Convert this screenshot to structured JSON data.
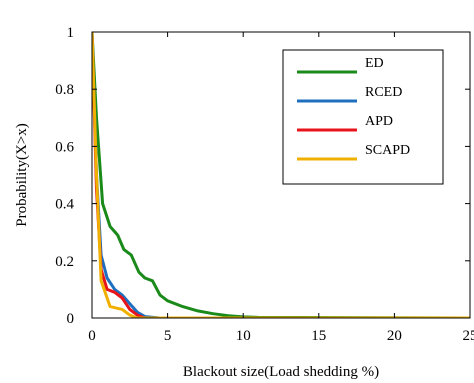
{
  "chart_data": {
    "type": "line",
    "title": "",
    "xlabel": "Blackout size(Load shedding %)",
    "ylabel": "Probability(X>x)",
    "xlim": [
      0,
      25
    ],
    "ylim": [
      0,
      1
    ],
    "xticks": [
      0,
      5,
      10,
      15,
      20,
      25
    ],
    "yticks": [
      0,
      0.2,
      0.4,
      0.6,
      0.8,
      1
    ],
    "xtick_labels": [
      "0",
      "5",
      "10",
      "15",
      "20",
      "25"
    ],
    "ytick_labels": [
      "0",
      "0.2",
      "0.4",
      "0.6",
      "0.8",
      "1"
    ],
    "grid": false,
    "legend_position": "top-right",
    "series": [
      {
        "name": "ED",
        "color": "#1a8a1a",
        "x": [
          0,
          0.3,
          0.7,
          1.2,
          1.7,
          2.1,
          2.6,
          3.1,
          3.5,
          4.0,
          4.5,
          5.0,
          6.0,
          7.0,
          8.0,
          9.0,
          10.0,
          11.0,
          25.0
        ],
        "y": [
          1.0,
          0.7,
          0.4,
          0.32,
          0.29,
          0.24,
          0.22,
          0.16,
          0.14,
          0.13,
          0.08,
          0.06,
          0.04,
          0.025,
          0.015,
          0.008,
          0.004,
          0.002,
          0.0
        ]
      },
      {
        "name": "RCED",
        "color": "#1f6fbf",
        "x": [
          0,
          0.3,
          0.6,
          1.0,
          1.5,
          2.0,
          2.5,
          3.0,
          3.5,
          4.5,
          25.0
        ],
        "y": [
          1.0,
          0.5,
          0.22,
          0.14,
          0.1,
          0.08,
          0.05,
          0.02,
          0.005,
          0.0,
          0.0
        ]
      },
      {
        "name": "APD",
        "color": "#e8141c",
        "x": [
          0,
          0.3,
          0.6,
          1.0,
          1.5,
          2.0,
          2.5,
          3.0,
          3.5,
          25.0
        ],
        "y": [
          1.0,
          0.45,
          0.17,
          0.1,
          0.09,
          0.07,
          0.03,
          0.01,
          0.0,
          0.0
        ]
      },
      {
        "name": "SCAPD",
        "color": "#f0b000",
        "x": [
          0,
          0.3,
          0.6,
          1.2,
          2.0,
          2.5,
          3.0,
          25.0
        ],
        "y": [
          1.0,
          0.5,
          0.13,
          0.04,
          0.03,
          0.01,
          0.0,
          0.0
        ]
      }
    ]
  }
}
